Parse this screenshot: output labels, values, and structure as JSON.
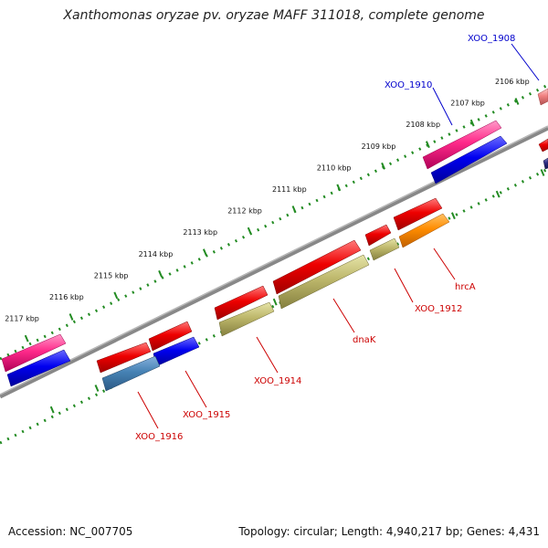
{
  "title": "Xanthomonas oryzae pv. oryzae MAFF 311018, complete genome",
  "footer": {
    "accession": "Accession: NC_007705",
    "summary": "Topology: circular; Length: 4,940,217 bp; Genes: 4,431"
  },
  "colors": {
    "forward_label": "#0000cc",
    "reverse_label": "#cc0000",
    "backbone": "#808080",
    "tick": "#228b22"
  },
  "ticks": [
    {
      "kbp": 2106,
      "label": "2106 kbp"
    },
    {
      "kbp": 2107,
      "label": "2107 kbp"
    },
    {
      "kbp": 2108,
      "label": "2108 kbp"
    },
    {
      "kbp": 2109,
      "label": "2109 kbp"
    },
    {
      "kbp": 2110,
      "label": "2110 kbp"
    },
    {
      "kbp": 2111,
      "label": "2111 kbp"
    },
    {
      "kbp": 2112,
      "label": "2112 kbp"
    },
    {
      "kbp": 2113,
      "label": "2113 kbp"
    },
    {
      "kbp": 2114,
      "label": "2114 kbp"
    },
    {
      "kbp": 2115,
      "label": "2115 kbp"
    },
    {
      "kbp": 2116,
      "label": "2116 kbp"
    },
    {
      "kbp": 2117,
      "label": "2117 kbp"
    }
  ],
  "gene_labels": [
    {
      "text": "XOO_1908",
      "strand": "forward"
    },
    {
      "text": "XOO_1910",
      "strand": "forward"
    },
    {
      "text": "hrcA",
      "strand": "reverse"
    },
    {
      "text": "XOO_1912",
      "strand": "reverse"
    },
    {
      "text": "dnaK",
      "strand": "reverse"
    },
    {
      "text": "XOO_1914",
      "strand": "reverse"
    },
    {
      "text": "XOO_1915",
      "strand": "reverse"
    },
    {
      "text": "XOO_1916",
      "strand": "reverse"
    }
  ]
}
